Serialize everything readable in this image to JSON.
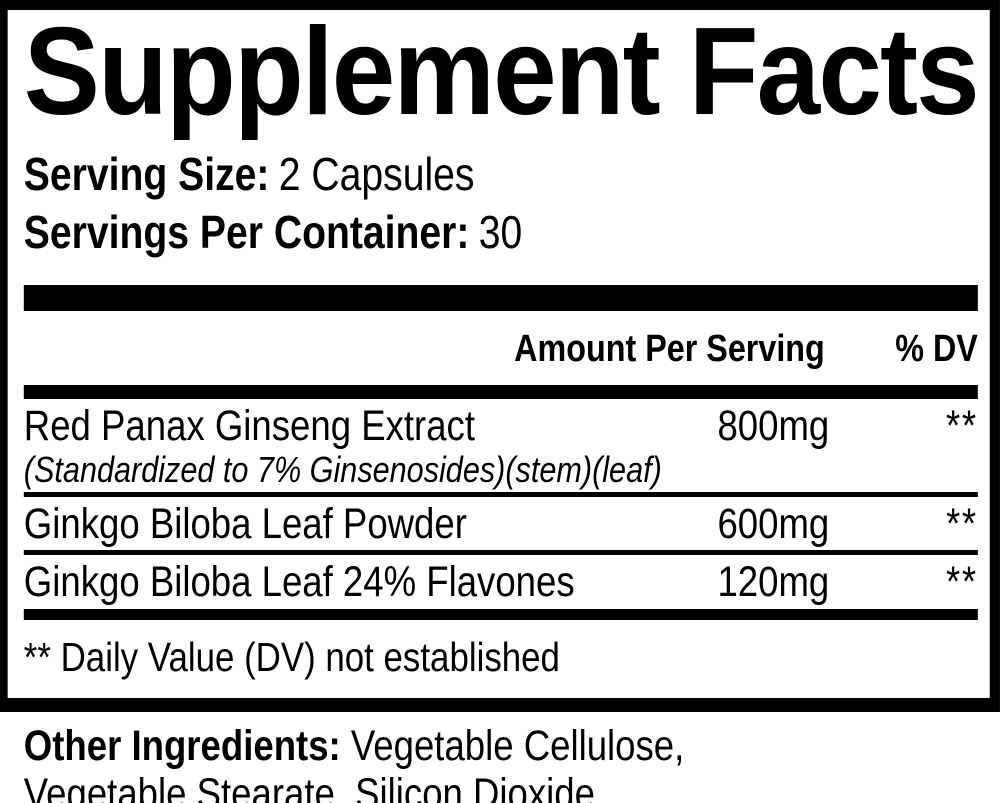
{
  "title": "Supplement Facts",
  "serving": {
    "size_label": "Serving Size:",
    "size_value": "2 Capsules",
    "per_container_label": "Servings Per Container:",
    "per_container_value": "30"
  },
  "columns": {
    "amount_per_serving": "Amount Per Serving",
    "percent_dv": "% DV"
  },
  "rows": [
    {
      "name": "Red Panax Ginseng Extract",
      "detail": "(Standardized to 7% Ginsenosides)(stem)(leaf)",
      "amount": "800mg",
      "dv": "**"
    },
    {
      "name": "Ginkgo Biloba Leaf Powder",
      "amount": "600mg",
      "dv": "**"
    },
    {
      "name": "Ginkgo Biloba Leaf 24% Flavones",
      "amount": "120mg",
      "dv": "**"
    }
  ],
  "footnote": "** Daily Value (DV) not established",
  "other_ingredients": {
    "label": "Other Ingredients:",
    "line1": "Vegetable Cellulose,",
    "line2": "Vegetable Stearate, Silicon Dioxide."
  },
  "colors": {
    "ink": "#000000",
    "paper": "#ffffff"
  }
}
